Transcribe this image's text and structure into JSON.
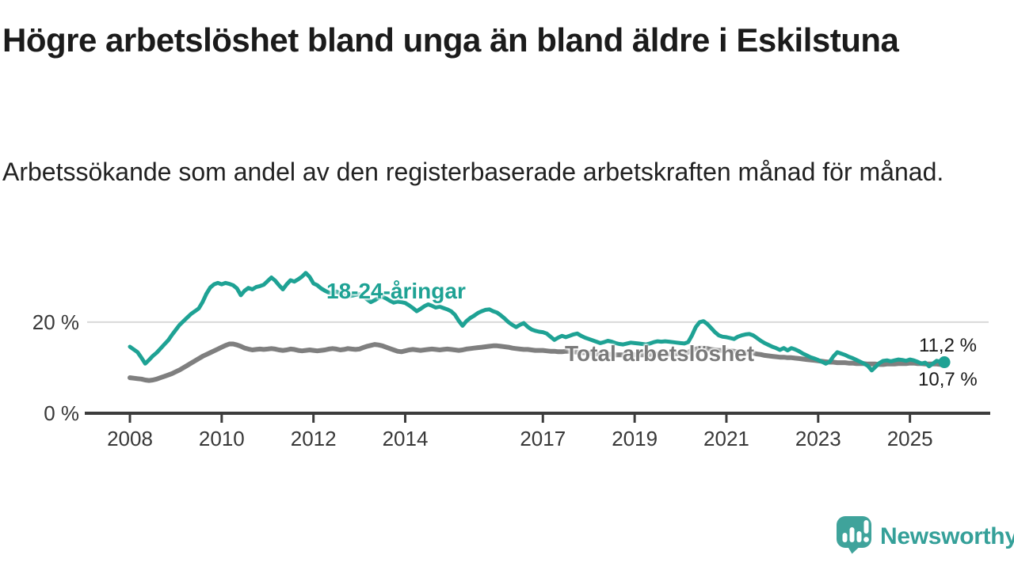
{
  "title": "Högre arbetslöshet bland unga än bland äldre i Eskilstuna",
  "subtitle": "Arbetssökande som andel av den registerbaserade arbetskraften månad för månad.",
  "branding": {
    "name": "Newsworthy",
    "icon": "newsworthy-speech-bubble-bar-chart-icon",
    "color": "#3fa39b"
  },
  "colors": {
    "young_line": "#1ea294",
    "total_line": "#7f7f7f",
    "gridline": "#d9d9d9",
    "axis": "#3c3c3c",
    "tick_label": "#383838",
    "text": "#1b1b1b"
  },
  "chart_data": {
    "type": "line",
    "title": "Högre arbetslöshet bland unga än bland äldre i Eskilstuna",
    "subtitle": "Arbetssökande som andel av den registerbaserade arbetskraften månad för månad.",
    "xlabel": "",
    "ylabel": "",
    "x_unit": "year-month",
    "x_start_year": 2008,
    "x_step_months": 1,
    "x_ticks": [
      2008,
      2010,
      2012,
      2014,
      2017,
      2019,
      2021,
      2023,
      2025
    ],
    "y_ticks": [
      {
        "value": 0,
        "label": "0 %"
      },
      {
        "value": 20,
        "label": "20 %"
      }
    ],
    "ylim": [
      0,
      33
    ],
    "xlim": [
      2007.9,
      2026.1
    ],
    "grid": "horizontal-only",
    "legend_position": "inline-labels-on-lines",
    "series": [
      {
        "name": "18-24-åringar",
        "color": "#1ea294",
        "end_label": "11,2 %",
        "end_value": 11.2,
        "end_marker": "dot",
        "values": [
          14.6,
          14.0,
          13.4,
          12.2,
          10.9,
          11.7,
          12.6,
          13.3,
          14.2,
          15.1,
          16.0,
          17.2,
          18.3,
          19.4,
          20.2,
          21.0,
          21.8,
          22.4,
          23.0,
          24.4,
          26.2,
          27.6,
          28.3,
          28.6,
          28.3,
          28.6,
          28.4,
          28.1,
          27.4,
          25.9,
          26.9,
          27.5,
          27.2,
          27.7,
          27.9,
          28.2,
          29.0,
          29.8,
          29.1,
          28.1,
          27.2,
          28.3,
          29.2,
          28.9,
          29.4,
          30.0,
          30.8,
          29.9,
          28.5,
          28.1,
          27.4,
          26.9,
          26.5,
          26.2,
          26.7,
          26.3,
          25.9,
          25.6,
          25.8,
          26.0,
          26.1,
          25.7,
          25.0,
          24.4,
          24.8,
          25.3,
          25.6,
          25.2,
          24.7,
          24.3,
          24.5,
          24.4,
          24.2,
          23.7,
          23.1,
          22.4,
          22.9,
          23.5,
          23.9,
          23.6,
          23.2,
          23.4,
          23.1,
          22.8,
          22.4,
          21.6,
          20.3,
          19.2,
          20.2,
          20.9,
          21.4,
          22.0,
          22.4,
          22.7,
          22.8,
          22.4,
          22.1,
          21.5,
          20.8,
          20.0,
          19.4,
          18.9,
          19.4,
          19.8,
          19.0,
          18.4,
          18.1,
          17.9,
          17.8,
          17.5,
          16.8,
          16.1,
          16.6,
          17.0,
          16.7,
          17.0,
          17.3,
          17.5,
          17.0,
          16.6,
          16.3,
          16.0,
          15.7,
          15.4,
          15.6,
          15.9,
          15.7,
          15.4,
          15.2,
          15.1,
          15.3,
          15.5,
          15.4,
          15.3,
          15.2,
          15.1,
          15.3,
          15.6,
          15.8,
          15.7,
          15.8,
          15.7,
          15.6,
          15.5,
          15.4,
          15.3,
          15.6,
          17.1,
          18.9,
          20.0,
          20.2,
          19.6,
          18.7,
          17.8,
          17.1,
          16.8,
          16.7,
          16.5,
          16.3,
          16.8,
          17.1,
          17.3,
          17.4,
          17.1,
          16.5,
          15.9,
          15.4,
          15.0,
          14.6,
          14.3,
          13.9,
          14.3,
          13.8,
          14.3,
          14.0,
          13.6,
          13.1,
          12.7,
          12.3,
          12.0,
          11.7,
          11.3,
          10.9,
          11.3,
          12.5,
          13.4,
          13.1,
          12.8,
          12.4,
          12.1,
          11.7,
          11.3,
          10.9,
          10.4,
          9.4,
          10.2,
          11.0,
          11.5,
          11.6,
          11.4,
          11.6,
          11.8,
          11.7,
          11.5,
          11.8,
          11.6,
          11.3,
          10.9,
          11.1,
          10.3,
          10.9,
          11.5,
          11.3,
          11.2
        ]
      },
      {
        "name": "Total arbetslöshet",
        "color": "#7f7f7f",
        "end_label": "10,7 %",
        "end_value": 10.7,
        "end_marker": "none",
        "values": [
          7.8,
          7.7,
          7.6,
          7.5,
          7.3,
          7.2,
          7.3,
          7.5,
          7.8,
          8.1,
          8.4,
          8.7,
          9.1,
          9.5,
          10.0,
          10.5,
          11.0,
          11.5,
          12.0,
          12.5,
          12.9,
          13.3,
          13.7,
          14.1,
          14.5,
          14.9,
          15.2,
          15.2,
          15.0,
          14.7,
          14.3,
          14.1,
          13.9,
          14.0,
          14.1,
          14.0,
          14.1,
          14.2,
          14.1,
          13.9,
          13.8,
          13.9,
          14.1,
          14.0,
          13.8,
          13.7,
          13.8,
          13.9,
          13.8,
          13.7,
          13.8,
          13.9,
          14.1,
          14.2,
          14.1,
          13.9,
          14.0,
          14.2,
          14.1,
          14.0,
          14.1,
          14.4,
          14.7,
          14.9,
          15.1,
          15.0,
          14.8,
          14.5,
          14.2,
          13.9,
          13.6,
          13.5,
          13.7,
          13.9,
          14.0,
          13.9,
          13.8,
          13.9,
          14.0,
          14.1,
          14.0,
          13.9,
          14.0,
          14.1,
          14.0,
          13.9,
          13.8,
          13.9,
          14.1,
          14.2,
          14.3,
          14.4,
          14.5,
          14.6,
          14.7,
          14.8,
          14.8,
          14.7,
          14.6,
          14.5,
          14.3,
          14.2,
          14.1,
          14.0,
          14.0,
          13.9,
          13.8,
          13.8,
          13.8,
          13.7,
          13.6,
          13.6,
          13.5,
          13.5,
          13.6,
          13.6,
          13.5,
          13.4,
          13.3,
          13.3,
          13.2,
          13.1,
          13.0,
          13.0,
          12.9,
          12.9,
          12.9,
          12.8,
          12.8,
          12.8,
          12.8,
          12.8,
          12.8,
          12.8,
          12.8,
          12.8,
          12.9,
          12.9,
          13.0,
          13.0,
          13.0,
          13.0,
          13.0,
          13.1,
          13.1,
          13.2,
          13.4,
          13.8,
          14.1,
          14.3,
          14.3,
          14.2,
          14.0,
          13.9,
          13.8,
          13.8,
          13.8,
          13.7,
          13.6,
          13.5,
          13.4,
          13.3,
          13.3,
          13.2,
          13.0,
          12.9,
          12.7,
          12.6,
          12.5,
          12.4,
          12.3,
          12.3,
          12.2,
          12.2,
          12.1,
          12.0,
          11.9,
          11.8,
          11.7,
          11.6,
          11.5,
          11.4,
          11.3,
          11.2,
          11.2,
          11.1,
          11.1,
          11.1,
          11.0,
          11.0,
          10.9,
          10.9,
          10.9,
          10.8,
          10.8,
          10.8,
          10.7,
          10.7,
          10.8,
          10.8,
          10.8,
          10.9,
          10.9,
          10.9,
          11.0,
          11.0,
          10.9,
          10.9,
          10.8,
          10.8,
          10.8,
          10.8,
          10.7,
          10.7
        ]
      }
    ]
  }
}
